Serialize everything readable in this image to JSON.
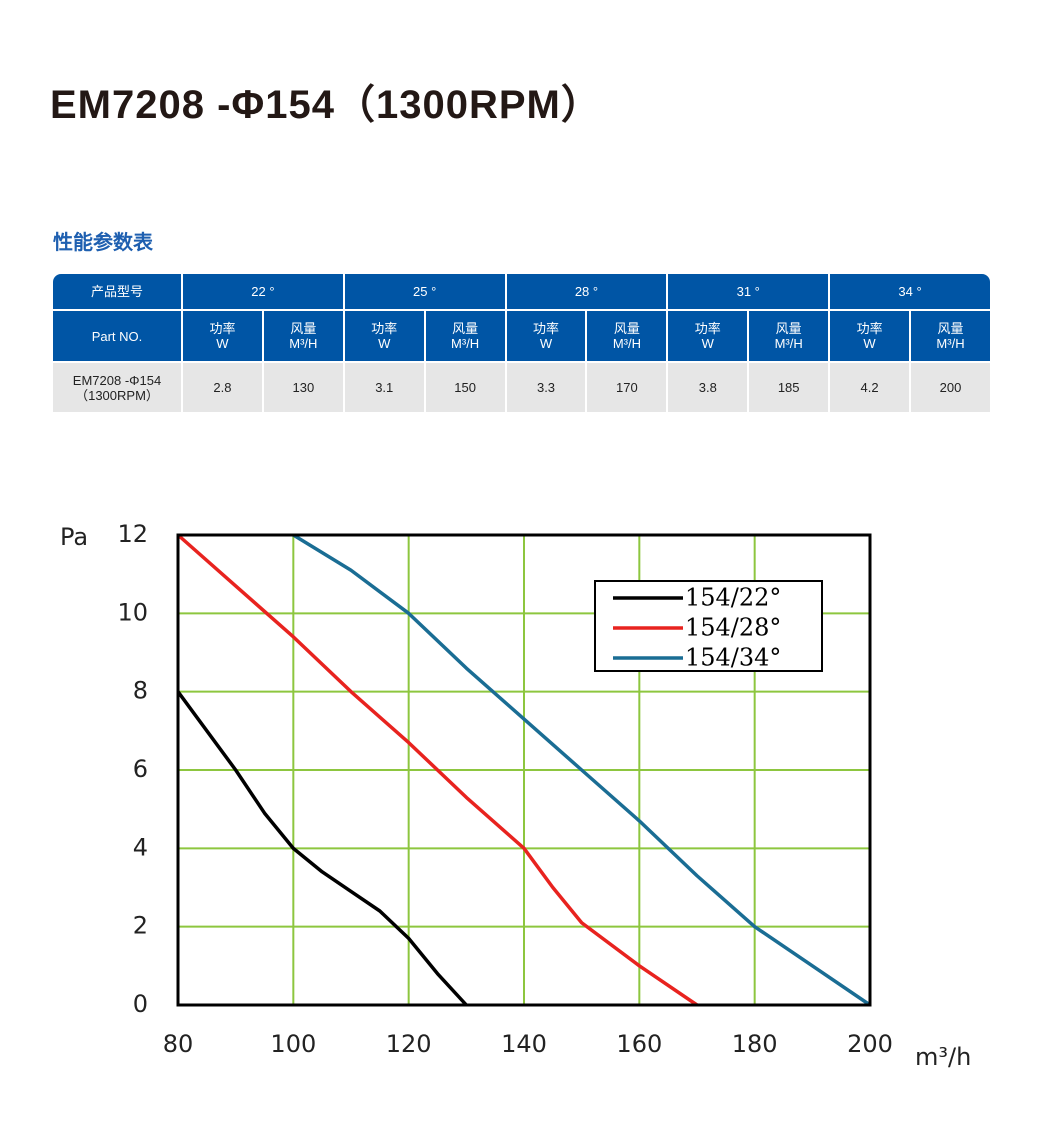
{
  "header": {
    "title": "EM7208 -Φ154（1300RPM）"
  },
  "section_title": "性能参数表",
  "table": {
    "model_label": "产品型号",
    "angles": [
      "22 °",
      "25 °",
      "28 °",
      "31 °",
      "34 °"
    ],
    "part_label": "Part NO.",
    "subheaders": [
      {
        "name": "功率",
        "unit": "W"
      },
      {
        "name": "风量",
        "unit": "M³/H"
      },
      {
        "name": "功率",
        "unit": "W"
      },
      {
        "name": "风量",
        "unit": "M³/H"
      },
      {
        "name": "功率",
        "unit": "W"
      },
      {
        "name": "风量",
        "unit": "M³/H"
      },
      {
        "name": "功率",
        "unit": "W"
      },
      {
        "name": "风量",
        "unit": "M³/H"
      },
      {
        "name": "功率",
        "unit": "W"
      },
      {
        "name": "风量",
        "unit": "M³/H"
      }
    ],
    "rows": [
      {
        "part": [
          "EM7208 -Φ154",
          "（1300RPM）"
        ],
        "values": [
          2.8,
          130,
          3.1,
          150,
          3.3,
          170,
          3.8,
          185,
          4.2,
          200
        ]
      }
    ]
  },
  "chart_data": {
    "type": "line",
    "y_label": "Pa",
    "x_label": "m³/h",
    "xlim": [
      80,
      200
    ],
    "xticks": [
      80,
      100,
      120,
      140,
      160,
      180,
      200
    ],
    "ylim": [
      0,
      12
    ],
    "yticks": [
      0,
      2,
      4,
      6,
      8,
      10,
      12
    ],
    "grid": true,
    "grid_color": "#8dc63f",
    "legend": "upper right",
    "series": [
      {
        "name": "154/22°",
        "color": "#000000",
        "x": [
          80,
          90,
          95,
          100,
          105,
          110,
          115,
          120,
          125,
          130
        ],
        "values": [
          8,
          6,
          4.9,
          4,
          3.4,
          2.9,
          2.4,
          1.7,
          0.8,
          0
        ]
      },
      {
        "name": "154/28°",
        "color": "#e8231f",
        "x": [
          80,
          90,
          100,
          110,
          120,
          130,
          140,
          145,
          150,
          160,
          170
        ],
        "values": [
          12,
          10.7,
          9.4,
          8,
          6.7,
          5.3,
          4,
          3,
          2.1,
          1,
          0
        ]
      },
      {
        "name": "154/34°",
        "color": "#1a6d94",
        "x": [
          100,
          110,
          120,
          130,
          140,
          150,
          160,
          170,
          180,
          190,
          200
        ],
        "values": [
          12,
          11.1,
          10,
          8.6,
          7.3,
          6,
          4.7,
          3.3,
          2,
          1,
          0
        ]
      }
    ]
  }
}
